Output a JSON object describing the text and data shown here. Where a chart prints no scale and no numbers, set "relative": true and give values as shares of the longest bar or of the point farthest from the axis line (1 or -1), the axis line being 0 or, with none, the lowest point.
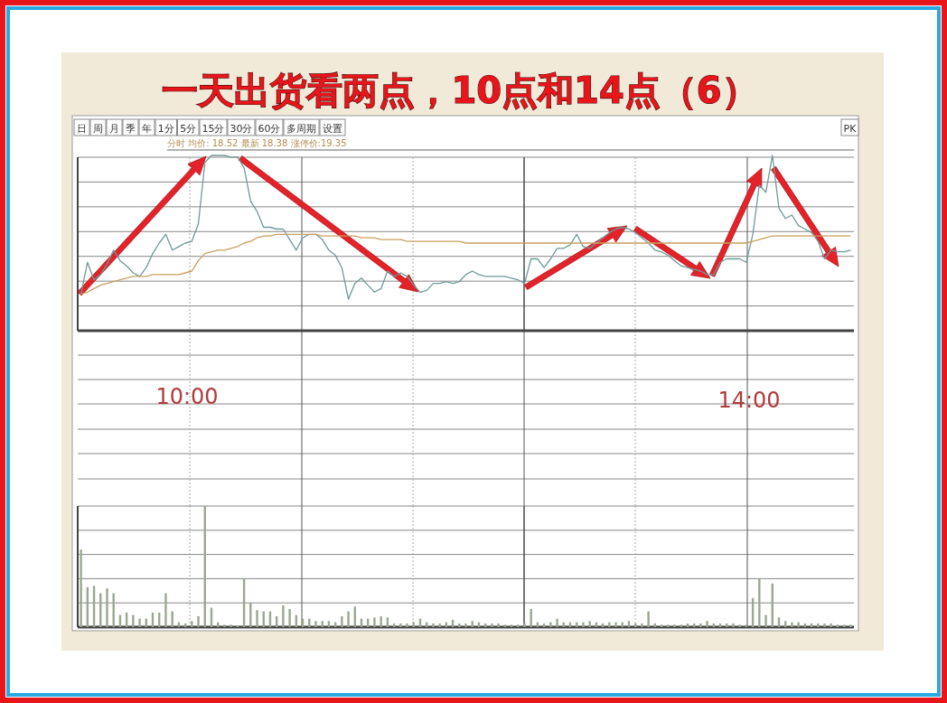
{
  "chart_data": [
    {
      "type": "line",
      "title": "一天出货看两点，10点和14点（6）",
      "subtitle": "分时 均价: 18.52 最新 18.38 涨停价:19.35",
      "relative": true,
      "grid": true,
      "categories": [
        null,
        null,
        null,
        null,
        null,
        null,
        null,
        null,
        null,
        null,
        null,
        null,
        null,
        null,
        null,
        null,
        null,
        null,
        null,
        null,
        null,
        null,
        null,
        null,
        null,
        null,
        null,
        null,
        null,
        null,
        null,
        null,
        null,
        null,
        null,
        null,
        null,
        null,
        null,
        null,
        null,
        null,
        null,
        null,
        null,
        null,
        null,
        null,
        null,
        null,
        null,
        null,
        null,
        null,
        null,
        null,
        null,
        null,
        null,
        null,
        null,
        null,
        null,
        null,
        null,
        null,
        null,
        null,
        null,
        null,
        null,
        null,
        null,
        null,
        null,
        null,
        null,
        null,
        null,
        null,
        null,
        null,
        null,
        null,
        null,
        null,
        null,
        null,
        null,
        null,
        null,
        null,
        null,
        null,
        null,
        null,
        null,
        null,
        null,
        null,
        null,
        null,
        null,
        null,
        null,
        null,
        null,
        null,
        null,
        null,
        null,
        null,
        null,
        null,
        null,
        null,
        null,
        null,
        null
      ],
      "series": [
        {
          "color": "#6f9a9a",
          "values": [
            0.21,
            0.39,
            0.29,
            0.32,
            0.38,
            0.46,
            0.4,
            0.37,
            0.33,
            0.31,
            0.36,
            0.44,
            0.5,
            0.55,
            0.46,
            0.48,
            0.5,
            0.51,
            0.61,
            0.96,
            1,
            1,
            1,
            0.99,
            0.99,
            0.93,
            0.74,
            0.68,
            0.59,
            0.59,
            0.58,
            0.58,
            0.52,
            0.46,
            0.53,
            0.55,
            0.55,
            0.52,
            0.46,
            0.43,
            0.36,
            0.18,
            0.27,
            0.3,
            0.26,
            0.22,
            0.24,
            0.34,
            0.31,
            0.33,
            0.31,
            0.26,
            0.22,
            0.23,
            0.27,
            0.27,
            0.28,
            0.27,
            0.28,
            0.32,
            0.34,
            0.32,
            0.31,
            0.31,
            0.31,
            0.31,
            0.3,
            0.29,
            0.27,
            0.41,
            0.41,
            0.36,
            0.41,
            0.47,
            0.47,
            0.49,
            0.55,
            0.48,
            0.47,
            0.5,
            0.53,
            0.56,
            0.58,
            0.59,
            0.58,
            0.56,
            0.53,
            0.5,
            0.46,
            0.45,
            0.43,
            0.4,
            0.37,
            0.36,
            0.35,
            0.34,
            0.32,
            0.32,
            0.39,
            0.41,
            0.41,
            0.41,
            0.39,
            0.55,
            0.83,
            0.79,
            1,
            0.7,
            0.64,
            0.66,
            0.6,
            0.58,
            0.56,
            0.51,
            0.41,
            0.46,
            0.45,
            0.45,
            0.46
          ]
        },
        {
          "color": "#c8a060",
          "values": [
            0.21,
            0.22,
            0.24,
            0.26,
            0.27,
            0.28,
            0.29,
            0.3,
            0.31,
            0.31,
            0.31,
            0.32,
            0.32,
            0.32,
            0.32,
            0.32,
            0.33,
            0.34,
            0.4,
            0.44,
            0.45,
            0.46,
            0.46,
            0.47,
            0.48,
            0.5,
            0.51,
            0.53,
            0.54,
            0.54,
            0.55,
            0.55,
            0.55,
            0.55,
            0.55,
            0.55,
            0.55,
            0.54,
            0.54,
            0.54,
            0.54,
            0.54,
            0.54,
            0.53,
            0.53,
            0.53,
            0.52,
            0.52,
            0.52,
            0.52,
            0.51,
            0.51,
            0.51,
            0.51,
            0.51,
            0.51,
            0.51,
            0.51,
            0.51,
            0.5,
            0.5,
            0.5,
            0.5,
            0.5,
            0.5,
            0.5,
            0.5,
            0.5,
            0.5,
            0.5,
            0.5,
            0.5,
            0.5,
            0.5,
            0.5,
            0.5,
            0.5,
            0.5,
            0.5,
            0.5,
            0.5,
            0.5,
            0.5,
            0.5,
            0.5,
            0.5,
            0.5,
            0.5,
            0.5,
            0.5,
            0.5,
            0.5,
            0.5,
            0.5,
            0.5,
            0.5,
            0.5,
            0.5,
            0.5,
            0.5,
            0.5,
            0.5,
            0.5,
            0.51,
            0.52,
            0.53,
            0.54,
            0.54,
            0.54,
            0.54,
            0.54,
            0.54,
            0.54,
            0.54,
            0.54,
            0.54,
            0.54,
            0.54,
            0.54
          ]
        }
      ],
      "annotations": [
        "日",
        "周",
        "月",
        "季",
        "年",
        "1分",
        "5分",
        "15分",
        "30分",
        "60分",
        "多周期",
        "设置",
        "PK",
        "10:00",
        "14:00"
      ]
    },
    {
      "type": "bar",
      "relative": true,
      "grid": true,
      "color": "#9aa890",
      "categories": [
        null,
        null,
        null,
        null,
        null,
        null,
        null,
        null,
        null,
        null,
        null,
        null,
        null,
        null,
        null,
        null,
        null,
        null,
        null,
        null,
        null,
        null,
        null,
        null,
        null,
        null,
        null,
        null,
        null,
        null,
        null,
        null,
        null,
        null,
        null,
        null,
        null,
        null,
        null,
        null,
        null,
        null,
        null,
        null,
        null,
        null,
        null,
        null,
        null,
        null,
        null,
        null,
        null,
        null,
        null,
        null,
        null,
        null,
        null,
        null,
        null,
        null,
        null,
        null,
        null,
        null,
        null,
        null,
        null,
        null,
        null,
        null,
        null,
        null,
        null,
        null,
        null,
        null,
        null,
        null,
        null,
        null,
        null,
        null,
        null,
        null,
        null,
        null,
        null,
        null,
        null,
        null,
        null,
        null,
        null,
        null,
        null,
        null,
        null,
        null,
        null,
        null,
        null,
        null,
        null,
        null,
        null,
        null,
        null,
        null,
        null,
        null,
        null,
        null,
        null,
        null,
        null,
        null,
        null
      ],
      "values": [
        0.64,
        0.33,
        0.34,
        0.28,
        0.32,
        0.28,
        0.1,
        0.12,
        0.1,
        0.07,
        0.07,
        0.12,
        0.12,
        0.28,
        0.13,
        0.04,
        0.03,
        0.05,
        0.09,
        1,
        0.16,
        0.04,
        0.02,
        0.02,
        0.01,
        0.4,
        0.2,
        0.14,
        0.13,
        0.13,
        0.09,
        0.18,
        0.15,
        0.1,
        0.07,
        0.07,
        0.05,
        0.05,
        0.05,
        0.04,
        0.09,
        0.13,
        0.17,
        0.07,
        0.07,
        0.08,
        0.09,
        0.08,
        0.03,
        0.03,
        0.03,
        0.04,
        0.07,
        0.04,
        0.03,
        0.03,
        0.04,
        0.06,
        0.03,
        0.03,
        0.05,
        0.04,
        0.03,
        0.03,
        0.03,
        0.02,
        0.02,
        0.02,
        0.03,
        0.15,
        0.04,
        0.03,
        0.04,
        0.07,
        0.04,
        0.04,
        0.04,
        0.04,
        0.05,
        0.04,
        0.03,
        0.04,
        0.04,
        0.04,
        0.05,
        0.03,
        0.03,
        0.13,
        0.03,
        0.02,
        0.02,
        0.02,
        0.02,
        0.03,
        0.03,
        0.03,
        0.05,
        0.03,
        0.03,
        0.03,
        0.03,
        0.02,
        0.02,
        0.24,
        0.4,
        0.1,
        0.36,
        0.08,
        0.05,
        0.04,
        0.04,
        0.03,
        0.03,
        0.03,
        0.03,
        0.03,
        0.02,
        0.02,
        0.02
      ]
    }
  ]
}
